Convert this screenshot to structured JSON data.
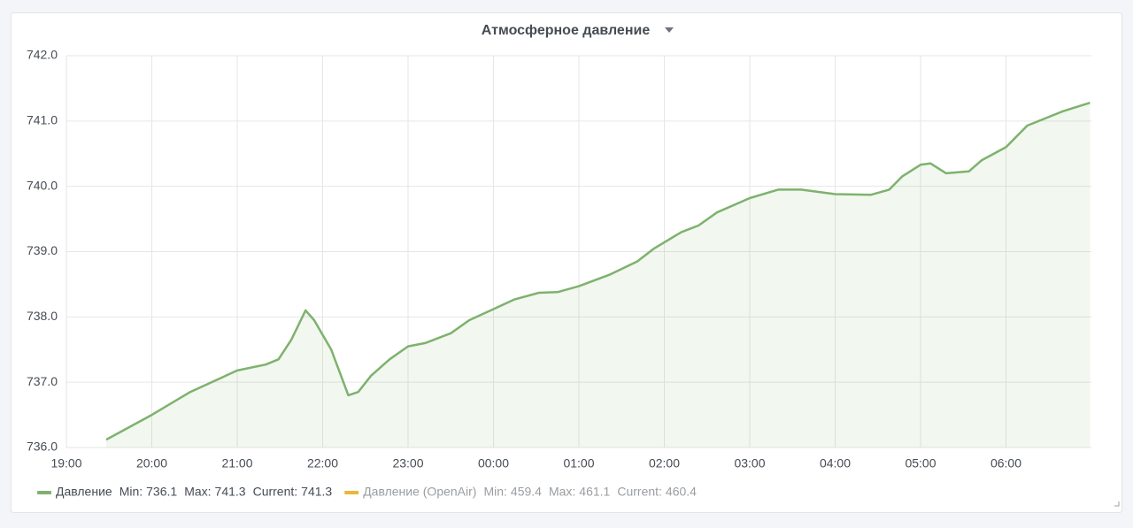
{
  "chart_data": {
    "type": "line",
    "title": "Атмосферное давление",
    "x": [
      "19:28",
      "20:00",
      "20:27",
      "21:00",
      "21:20",
      "21:29",
      "21:38",
      "21:48",
      "21:54",
      "22:06",
      "22:18",
      "22:25",
      "22:34",
      "22:47",
      "23:00",
      "23:12",
      "23:30",
      "23:43",
      "00:00",
      "00:15",
      "00:32",
      "00:45",
      "01:00",
      "01:22",
      "01:41",
      "01:53",
      "02:12",
      "02:24",
      "02:37",
      "03:00",
      "03:20",
      "03:36",
      "04:00",
      "04:25",
      "04:38",
      "04:47",
      "05:00",
      "05:07",
      "05:18",
      "05:34",
      "05:43",
      "06:00",
      "06:15",
      "06:40",
      "06:59"
    ],
    "series": [
      {
        "name": "Давление",
        "color": "#7eb26d",
        "values": [
          736.12,
          736.5,
          736.85,
          737.18,
          737.27,
          737.35,
          737.65,
          738.1,
          737.95,
          737.5,
          736.8,
          736.85,
          737.1,
          737.35,
          737.55,
          737.6,
          737.75,
          737.95,
          738.12,
          738.27,
          738.37,
          738.38,
          738.47,
          738.65,
          738.85,
          739.05,
          739.3,
          739.4,
          739.6,
          739.82,
          739.95,
          739.95,
          739.88,
          739.87,
          739.95,
          740.15,
          740.33,
          740.35,
          740.2,
          740.23,
          740.4,
          740.6,
          740.93,
          741.15,
          741.28
        ],
        "stats": [
          {
            "label": "Min:",
            "value": 736.1
          },
          {
            "label": "Max:",
            "value": 741.3
          },
          {
            "label": "Current:",
            "value": 741.3
          }
        ]
      },
      {
        "name": "Давление (OpenAir)",
        "color": "#eab839",
        "hidden": true,
        "stats": [
          {
            "label": "Min:",
            "value": 459.4
          },
          {
            "label": "Max:",
            "value": 461.1
          },
          {
            "label": "Current:",
            "value": 460.4
          }
        ]
      }
    ],
    "xlim": [
      "19:00",
      "07:00"
    ],
    "xticks": [
      "19:00",
      "20:00",
      "21:00",
      "22:00",
      "23:00",
      "00:00",
      "01:00",
      "02:00",
      "03:00",
      "04:00",
      "05:00",
      "06:00"
    ],
    "ylim": [
      736,
      742
    ],
    "yticks": [
      {
        "value": 736,
        "label": "736.0"
      },
      {
        "value": 737,
        "label": "737.0"
      },
      {
        "value": 738,
        "label": "738.0"
      },
      {
        "value": 739,
        "label": "739.0"
      },
      {
        "value": 740,
        "label": "740.0"
      },
      {
        "value": 741,
        "label": "741.0"
      },
      {
        "value": 742,
        "label": "742.0"
      }
    ],
    "grid": true
  }
}
